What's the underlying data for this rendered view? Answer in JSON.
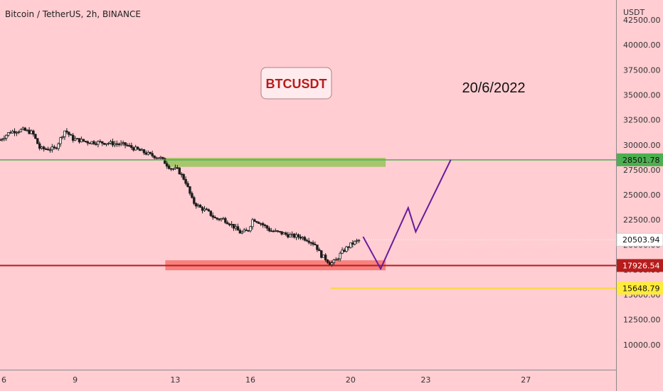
{
  "header": {
    "symbol_title": "Bitcoin / TetherUS, 2h, BINANCE"
  },
  "annotations": {
    "ticker_box": "BTCUSDT",
    "date_text": "20/6/2022"
  },
  "colors": {
    "background": "#ffcdd2",
    "candle": "#1c1c1c",
    "resistance_line": "#4caf50",
    "resistance_zone": "#8bc34a",
    "support_line": "#b71c1c",
    "support_zone": "#f44336",
    "target_line": "#fdd835",
    "projection": "#6a1b9a",
    "ticker_text": "#b71c1c"
  },
  "chart_data": {
    "type": "candlestick",
    "pair": "BTC/USDT",
    "interval": "2h",
    "yaxis": {
      "unit": "USDT",
      "ticks": [
        "42500.00",
        "40000.00",
        "37500.00",
        "35000.00",
        "32500.00",
        "30000.00",
        "27500.00",
        "25000.00",
        "22500.00",
        "20000.00",
        "17500.00",
        "15000.00",
        "12500.00",
        "10000.00"
      ],
      "tick_values": [
        42500,
        40000,
        37500,
        35000,
        32500,
        30000,
        27500,
        25000,
        22500,
        20000,
        17500,
        15000,
        12500,
        10000
      ],
      "ylim": [
        7500,
        44500
      ]
    },
    "xaxis": {
      "ticks": [
        "6",
        "9",
        "13",
        "16",
        "20",
        "23",
        "27"
      ],
      "tick_values": [
        6,
        9,
        13,
        16,
        20,
        23,
        27
      ],
      "xlim": [
        6,
        30.6
      ]
    },
    "price_path": [
      [
        6.0,
        30500
      ],
      [
        6.4,
        31300
      ],
      [
        6.9,
        31500
      ],
      [
        7.3,
        31200
      ],
      [
        7.6,
        29600
      ],
      [
        8.2,
        29600
      ],
      [
        8.6,
        31500
      ],
      [
        8.9,
        30600
      ],
      [
        9.5,
        30300
      ],
      [
        10.3,
        30200
      ],
      [
        11.0,
        30000
      ],
      [
        11.5,
        29500
      ],
      [
        12.0,
        29000
      ],
      [
        12.4,
        28700
      ],
      [
        12.8,
        27700
      ],
      [
        13.1,
        27500
      ],
      [
        13.4,
        26400
      ],
      [
        13.7,
        24300
      ],
      [
        14.0,
        23700
      ],
      [
        14.3,
        23300
      ],
      [
        14.6,
        22600
      ],
      [
        14.9,
        22600
      ],
      [
        15.2,
        22100
      ],
      [
        15.6,
        21200
      ],
      [
        15.9,
        21400
      ],
      [
        16.1,
        22600
      ],
      [
        16.4,
        22200
      ],
      [
        16.8,
        21400
      ],
      [
        17.2,
        21200
      ],
      [
        17.6,
        20900
      ],
      [
        18.0,
        20800
      ],
      [
        18.3,
        20500
      ],
      [
        18.6,
        20000
      ],
      [
        18.8,
        19000
      ],
      [
        19.0,
        18600
      ],
      [
        19.2,
        18100
      ],
      [
        19.4,
        18400
      ],
      [
        19.6,
        19100
      ],
      [
        19.8,
        19600
      ],
      [
        20.0,
        20000
      ],
      [
        20.2,
        20300
      ],
      [
        20.4,
        20500
      ]
    ],
    "levels": [
      {
        "price": 28501.78,
        "label": "28501.78",
        "line": "green"
      },
      {
        "price": 17926.54,
        "label": "17926.54",
        "line": "red"
      },
      {
        "price": 15648.79,
        "label": "15648.79",
        "line": "yellow"
      }
    ],
    "last_price": {
      "price": 20503.94,
      "label": "20503.94"
    },
    "zones": [
      {
        "kind": "resistance",
        "from_x": 12.6,
        "to_x": 21.4,
        "low": 27800,
        "high": 28700
      },
      {
        "kind": "support",
        "from_x": 12.6,
        "to_x": 21.4,
        "low": 17450,
        "high": 18450
      }
    ],
    "projection_path": [
      [
        20.5,
        20800
      ],
      [
        21.2,
        17600
      ],
      [
        22.3,
        23700
      ],
      [
        22.6,
        21300
      ],
      [
        24.0,
        28500
      ]
    ]
  }
}
